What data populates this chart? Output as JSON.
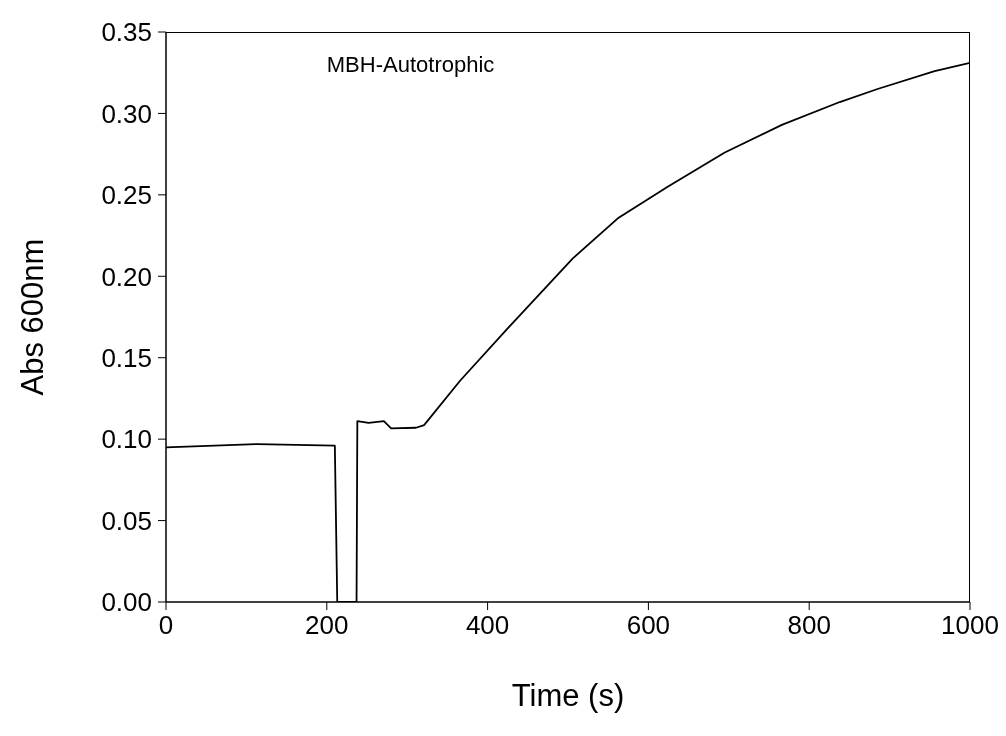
{
  "chart_data": {
    "type": "line",
    "xlabel": "Time (s)",
    "ylabel": "Abs 600nm",
    "annotations": [
      "MBH-Autotrophic"
    ],
    "x": [
      0,
      114,
      210,
      213,
      237,
      238,
      252,
      271,
      280,
      311,
      321,
      366,
      425,
      506,
      563,
      624,
      695,
      766,
      838,
      885,
      956,
      1000
    ],
    "series": [
      {
        "color": "#000000",
        "values": [
          0.095,
          0.097,
          0.096,
          0,
          0,
          0.111,
          0.11,
          0.111,
          0.1066,
          0.107,
          0.1086,
          0.136,
          0.168,
          0.211,
          0.236,
          0.255,
          0.276,
          0.293,
          0.307,
          0.315,
          0.326,
          0.331
        ]
      }
    ],
    "xlim": [
      0,
      1000
    ],
    "xticks": [
      0,
      200,
      400,
      600,
      800,
      1000
    ],
    "ylim": [
      0,
      0.35
    ],
    "yticks": [
      {
        "value": 0,
        "label": "0.00"
      },
      0.05,
      {
        "value": 0.1,
        "label": "0.10"
      },
      0.15,
      {
        "value": 0.2,
        "label": "0.20"
      },
      0.25,
      {
        "value": 0.3,
        "label": "0.30"
      },
      0.35
    ],
    "grid": false,
    "legend": false,
    "marker": "none",
    "line_style": "solid"
  }
}
